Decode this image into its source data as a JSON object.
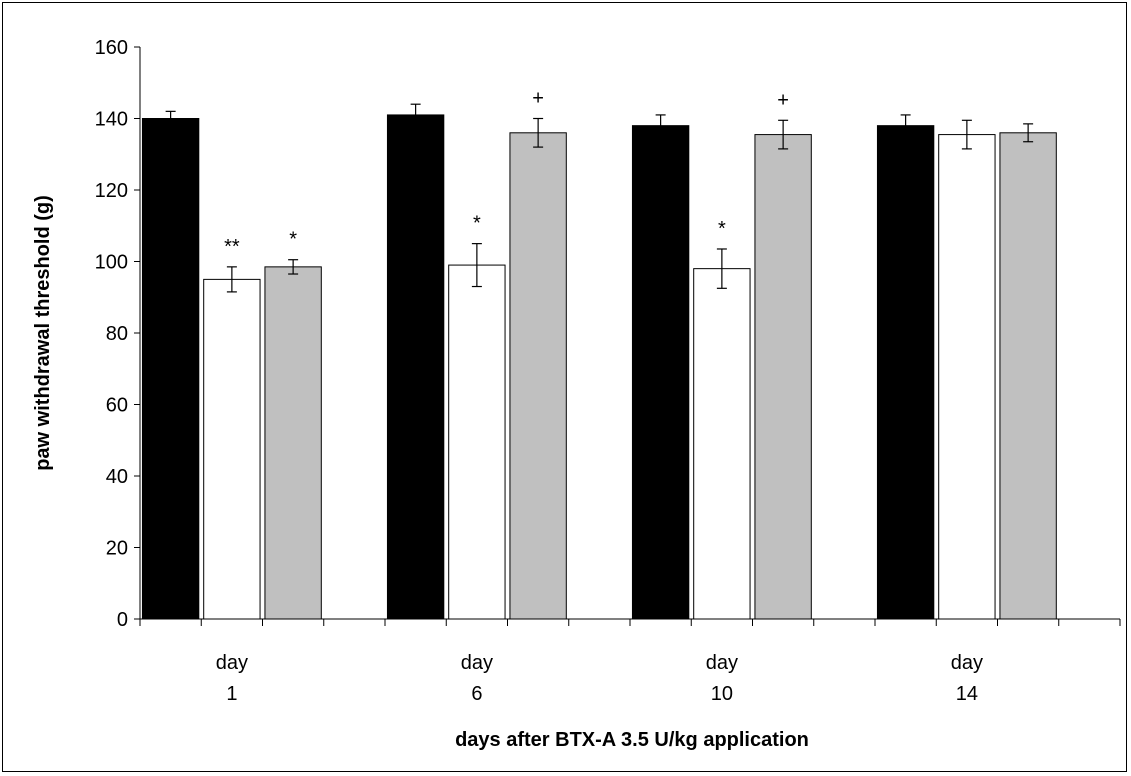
{
  "chart_data": {
    "type": "bar",
    "title": "",
    "ylabel": "paw withdrawal threshold (g)",
    "xlabel": "days after BTX-A 3.5 U/kg application",
    "ylim": [
      0,
      160
    ],
    "yticks": [
      0,
      20,
      40,
      60,
      80,
      100,
      120,
      140,
      160
    ],
    "grid": false,
    "legend": "none",
    "categories": [
      {
        "line1": "day",
        "line2": "1"
      },
      {
        "line1": "day",
        "line2": "6"
      },
      {
        "line1": "day",
        "line2": "10"
      },
      {
        "line1": "day",
        "line2": "14"
      }
    ],
    "series": [
      {
        "color": "#000000",
        "values": [
          140,
          141,
          138,
          138
        ],
        "errors": [
          2,
          3,
          3,
          3
        ]
      },
      {
        "color": "#ffffff",
        "values": [
          95,
          99,
          98,
          135.5
        ],
        "errors": [
          3.5,
          6,
          5.5,
          4
        ]
      },
      {
        "color": "#c0c0c0",
        "values": [
          98.5,
          136,
          135.5,
          136
        ],
        "errors": [
          2,
          4,
          4,
          2.5
        ]
      }
    ],
    "annotations": [
      {
        "text": "**",
        "category": 0,
        "series": 1
      },
      {
        "text": "*",
        "category": 0,
        "series": 2
      },
      {
        "text": "*",
        "category": 1,
        "series": 1
      },
      {
        "text": "+",
        "category": 1,
        "series": 2
      },
      {
        "text": "*",
        "category": 2,
        "series": 1
      },
      {
        "text": "+",
        "category": 2,
        "series": 2
      }
    ]
  }
}
